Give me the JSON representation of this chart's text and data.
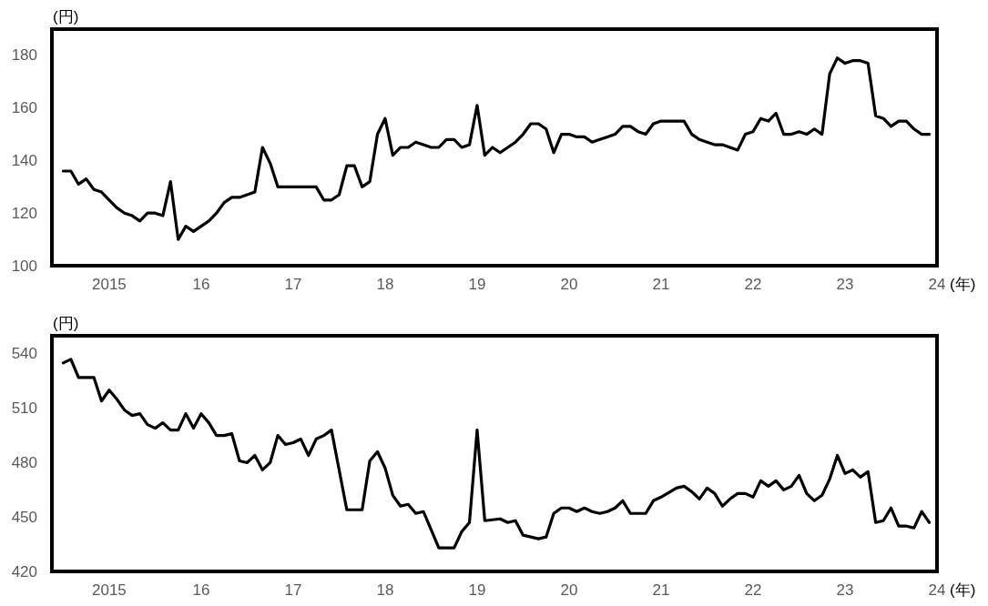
{
  "chart_data": [
    {
      "type": "line",
      "ylabel": "(円)",
      "xlabel": "(年)",
      "xlim": [
        "2014-05-17",
        "2024-01-01"
      ],
      "ylim": [
        100,
        190
      ],
      "xticks": [
        {
          "value": "2015-01",
          "label": "2015"
        },
        {
          "value": "2016-01",
          "label": "16"
        },
        {
          "value": "2017-01",
          "label": "17"
        },
        {
          "value": "2018-01",
          "label": "18"
        },
        {
          "value": "2019-01",
          "label": "19"
        },
        {
          "value": "2020-01",
          "label": "20"
        },
        {
          "value": "2021-01",
          "label": "21"
        },
        {
          "value": "2022-01",
          "label": "22"
        },
        {
          "value": "2023-01",
          "label": "23"
        },
        {
          "value": "2024-01",
          "label": "24"
        }
      ],
      "yticks": [
        100,
        120,
        140,
        160,
        180
      ],
      "series": [
        {
          "color": "#000000",
          "x": [
            "2014-07",
            "2014-08",
            "2014-09",
            "2014-10",
            "2014-11",
            "2014-12",
            "2015-01",
            "2015-02",
            "2015-03",
            "2015-04",
            "2015-05",
            "2015-06",
            "2015-07",
            "2015-08",
            "2015-09",
            "2015-10",
            "2015-11",
            "2015-12",
            "2016-01",
            "2016-02",
            "2016-03",
            "2016-04",
            "2016-05",
            "2016-06",
            "2016-07",
            "2016-08",
            "2016-09",
            "2016-10",
            "2016-11",
            "2017-04",
            "2017-05",
            "2017-06",
            "2017-07",
            "2017-08",
            "2017-09",
            "2017-10",
            "2017-11",
            "2017-12",
            "2018-01",
            "2018-02",
            "2018-03",
            "2018-04",
            "2018-05",
            "2018-06",
            "2018-07",
            "2018-08",
            "2018-09",
            "2018-10",
            "2018-11",
            "2018-12",
            "2019-01",
            "2019-02",
            "2019-03",
            "2019-04",
            "2019-05",
            "2019-06",
            "2019-07",
            "2019-08",
            "2019-09",
            "2019-10",
            "2019-11",
            "2019-12",
            "2020-01",
            "2020-02",
            "2020-03",
            "2020-04",
            "2020-05",
            "2020-06",
            "2020-07",
            "2020-08",
            "2020-09",
            "2020-10",
            "2020-11",
            "2020-12",
            "2021-01",
            "2021-04",
            "2021-05",
            "2021-06",
            "2021-07",
            "2021-08",
            "2021-09",
            "2021-10",
            "2021-11",
            "2021-12",
            "2022-01",
            "2022-02",
            "2022-03",
            "2022-04",
            "2022-05",
            "2022-06",
            "2022-07",
            "2022-08",
            "2022-09",
            "2022-10",
            "2022-11",
            "2022-12",
            "2023-01",
            "2023-02",
            "2023-03",
            "2023-04",
            "2023-05",
            "2023-06",
            "2023-07",
            "2023-08",
            "2023-09",
            "2023-10",
            "2023-11",
            "2023-12"
          ],
          "values": [
            136,
            136,
            131,
            133,
            129,
            128,
            125,
            122,
            120,
            119,
            117,
            120,
            120,
            119,
            132,
            110,
            115,
            113,
            115,
            117,
            120,
            124,
            126,
            126,
            127,
            128,
            145,
            139,
            130,
            130,
            125,
            125,
            127,
            138,
            138,
            130,
            132,
            150,
            156,
            142,
            145,
            145,
            147,
            146,
            145,
            145,
            148,
            148,
            145,
            146,
            161,
            142,
            145,
            143,
            145,
            147,
            150,
            154,
            154,
            152,
            143,
            150,
            150,
            149,
            149,
            147,
            148,
            149,
            150,
            153,
            153,
            151,
            150,
            154,
            155,
            155,
            150,
            148,
            147,
            146,
            146,
            145,
            144,
            150,
            151,
            156,
            155,
            158,
            150,
            150,
            151,
            150,
            152,
            150,
            173,
            179,
            177,
            178,
            178,
            177,
            157,
            156,
            153,
            155,
            155,
            152,
            150,
            150
          ]
        }
      ]
    },
    {
      "type": "line",
      "ylabel": "(円)",
      "xlabel": "(年)",
      "xlim": [
        "2014-05-17",
        "2024-01-01"
      ],
      "ylim": [
        420,
        550
      ],
      "xticks": [
        {
          "value": "2015-01",
          "label": "2015"
        },
        {
          "value": "2016-01",
          "label": "16"
        },
        {
          "value": "2017-01",
          "label": "17"
        },
        {
          "value": "2018-01",
          "label": "18"
        },
        {
          "value": "2019-01",
          "label": "19"
        },
        {
          "value": "2020-01",
          "label": "20"
        },
        {
          "value": "2021-01",
          "label": "21"
        },
        {
          "value": "2022-01",
          "label": "22"
        },
        {
          "value": "2023-01",
          "label": "23"
        },
        {
          "value": "2024-01",
          "label": "24"
        }
      ],
      "yticks": [
        420,
        450,
        480,
        510,
        540
      ],
      "series": [
        {
          "color": "#000000",
          "x": [
            "2014-07",
            "2014-08",
            "2014-09",
            "2014-10",
            "2014-11",
            "2014-12",
            "2015-01",
            "2015-02",
            "2015-03",
            "2015-04",
            "2015-05",
            "2015-06",
            "2015-07",
            "2015-08",
            "2015-09",
            "2015-10",
            "2015-11",
            "2015-12",
            "2016-01",
            "2016-02",
            "2016-03",
            "2016-04",
            "2016-05",
            "2016-06",
            "2016-07",
            "2016-08",
            "2016-09",
            "2016-10",
            "2016-11",
            "2016-12",
            "2017-01",
            "2017-02",
            "2017-03",
            "2017-04",
            "2017-05",
            "2017-06",
            "2017-08",
            "2017-09",
            "2017-10",
            "2017-11",
            "2017-12",
            "2018-01",
            "2018-02",
            "2018-03",
            "2018-04",
            "2018-05",
            "2018-06",
            "2018-07",
            "2018-08",
            "2018-09",
            "2018-10",
            "2018-11",
            "2018-12",
            "2019-01",
            "2019-02",
            "2019-04",
            "2019-05",
            "2019-06",
            "2019-07",
            "2019-09",
            "2019-10",
            "2019-11",
            "2019-12",
            "2020-01",
            "2020-02",
            "2020-03",
            "2020-04",
            "2020-05",
            "2020-06",
            "2020-07",
            "2020-08",
            "2020-09",
            "2020-10",
            "2020-11",
            "2020-12",
            "2021-01",
            "2021-03",
            "2021-04",
            "2021-05",
            "2021-06",
            "2021-07",
            "2021-08",
            "2021-09",
            "2021-10",
            "2021-11",
            "2021-12",
            "2022-01",
            "2022-02",
            "2022-03",
            "2022-04",
            "2022-05",
            "2022-06",
            "2022-07",
            "2022-08",
            "2022-09",
            "2022-10",
            "2022-11",
            "2022-12",
            "2023-01",
            "2023-02",
            "2023-03",
            "2023-04",
            "2023-05",
            "2023-06",
            "2023-07",
            "2023-08",
            "2023-09",
            "2023-10",
            "2023-11",
            "2023-12"
          ],
          "values": [
            535,
            537,
            527,
            527,
            527,
            514,
            520,
            515,
            509,
            506,
            507,
            501,
            499,
            502,
            498,
            498,
            507,
            499,
            507,
            502,
            495,
            495,
            496,
            481,
            480,
            484,
            476,
            480,
            495,
            490,
            491,
            493,
            484,
            493,
            495,
            498,
            454,
            454,
            454,
            481,
            486,
            477,
            462,
            456,
            457,
            452,
            453,
            443,
            433,
            433,
            433,
            442,
            447,
            498,
            448,
            449,
            447,
            448,
            440,
            438,
            439,
            452,
            455,
            455,
            453,
            455,
            453,
            452,
            453,
            455,
            459,
            452,
            452,
            452,
            459,
            461,
            466,
            467,
            464,
            460,
            466,
            463,
            456,
            460,
            463,
            463,
            461,
            470,
            467,
            470,
            465,
            467,
            473,
            463,
            459,
            462,
            471,
            484,
            474,
            476,
            472,
            475,
            447,
            448,
            455,
            445,
            445,
            444,
            453,
            447
          ]
        }
      ]
    }
  ]
}
